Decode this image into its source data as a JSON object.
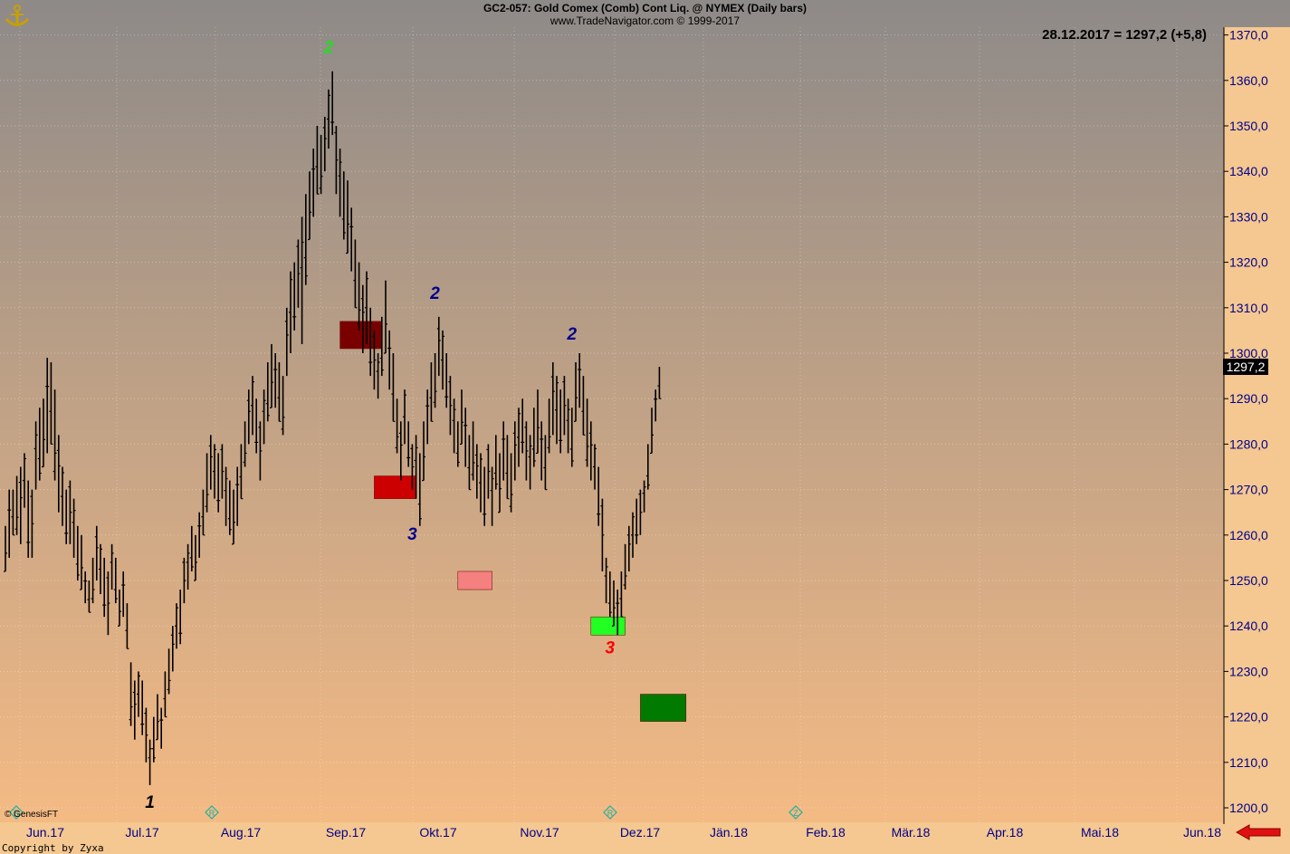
{
  "header": {
    "title": "GC2-057:  Gold Comex (Comb) Cont Liq. @ NYMEX  (Daily bars)",
    "source": "www.TradeNavigator.com © 1999-2017"
  },
  "last_label": "28.12.2017 = 1297,2 (+5,8)",
  "price_tag": "1297,2",
  "copyright_genesis": "© GenesisFT",
  "copyright_zyxa": "Copyright by Zyxa",
  "icons": {
    "logo": "anchor-logo-icon",
    "scroll": "red-left-arrow-icon"
  },
  "colors": {
    "bg_top": "#8e8a88",
    "bg_bottom": "#f8bc84",
    "bars": "#000000",
    "axis_labels": "#00008b"
  },
  "chart_data": {
    "type": "ohlc-bar",
    "ylim": [
      1198,
      1372
    ],
    "y_ticks": [
      "1200,0",
      "1210,0",
      "1220,0",
      "1230,0",
      "1240,0",
      "1250,0",
      "1260,0",
      "1270,0",
      "1280,0",
      "1290,0",
      "1300,0",
      "1310,0",
      "1320,0",
      "1330,0",
      "1340,0",
      "1350,0",
      "1360,0",
      "1370,0"
    ],
    "x_ticks": [
      "Jun.17",
      "Jul.17",
      "Aug.17",
      "Sep.17",
      "Okt.17",
      "Nov.17",
      "Dez.17",
      "Jän.18",
      "Feb.18",
      "Mär.18",
      "Apr.18",
      "Mai.18",
      "Jun.18"
    ],
    "bars": [
      [
        1262,
        1252
      ],
      [
        1270,
        1255
      ],
      [
        1270,
        1260
      ],
      [
        1273,
        1260
      ],
      [
        1275,
        1258
      ],
      [
        1278,
        1266
      ],
      [
        1272,
        1255
      ],
      [
        1270,
        1255
      ],
      [
        1285,
        1270
      ],
      [
        1288,
        1272
      ],
      [
        1290,
        1275
      ],
      [
        1299,
        1278
      ],
      [
        1298,
        1280
      ],
      [
        1292,
        1272
      ],
      [
        1282,
        1265
      ],
      [
        1275,
        1262
      ],
      [
        1270,
        1258
      ],
      [
        1272,
        1258
      ],
      [
        1268,
        1255
      ],
      [
        1262,
        1250
      ],
      [
        1260,
        1248
      ],
      [
        1252,
        1245
      ],
      [
        1250,
        1243
      ],
      [
        1255,
        1245
      ],
      [
        1262,
        1250
      ],
      [
        1258,
        1247
      ],
      [
        1255,
        1242
      ],
      [
        1252,
        1238
      ],
      [
        1258,
        1248
      ],
      [
        1255,
        1245
      ],
      [
        1248,
        1240
      ],
      [
        1252,
        1242
      ],
      [
        1245,
        1235
      ],
      [
        1232,
        1218
      ],
      [
        1228,
        1215
      ],
      [
        1230,
        1220
      ],
      [
        1228,
        1216
      ],
      [
        1222,
        1210
      ],
      [
        1215,
        1205
      ],
      [
        1220,
        1210
      ],
      [
        1225,
        1215
      ],
      [
        1222,
        1213
      ],
      [
        1230,
        1220
      ],
      [
        1235,
        1225
      ],
      [
        1240,
        1230
      ],
      [
        1245,
        1235
      ],
      [
        1248,
        1236
      ],
      [
        1255,
        1245
      ],
      [
        1258,
        1248
      ],
      [
        1262,
        1252
      ],
      [
        1260,
        1250
      ],
      [
        1265,
        1255
      ],
      [
        1270,
        1260
      ],
      [
        1278,
        1265
      ],
      [
        1282,
        1270
      ],
      [
        1280,
        1268
      ],
      [
        1278,
        1265
      ],
      [
        1280,
        1268
      ],
      [
        1275,
        1262
      ],
      [
        1272,
        1260
      ],
      [
        1270,
        1258
      ],
      [
        1275,
        1262
      ],
      [
        1280,
        1268
      ],
      [
        1285,
        1275
      ],
      [
        1292,
        1280
      ],
      [
        1295,
        1282
      ],
      [
        1290,
        1278
      ],
      [
        1285,
        1272
      ],
      [
        1292,
        1280
      ],
      [
        1298,
        1285
      ],
      [
        1302,
        1288
      ],
      [
        1300,
        1288
      ],
      [
        1298,
        1285
      ],
      [
        1295,
        1282
      ],
      [
        1310,
        1295
      ],
      [
        1318,
        1300
      ],
      [
        1320,
        1305
      ],
      [
        1325,
        1310
      ],
      [
        1330,
        1302
      ],
      [
        1335,
        1315
      ],
      [
        1340,
        1325
      ],
      [
        1345,
        1330
      ],
      [
        1350,
        1335
      ],
      [
        1348,
        1335
      ],
      [
        1352,
        1340
      ],
      [
        1358,
        1345
      ],
      [
        1362,
        1348
      ],
      [
        1350,
        1335
      ],
      [
        1345,
        1330
      ],
      [
        1340,
        1325
      ],
      [
        1338,
        1322
      ],
      [
        1332,
        1318
      ],
      [
        1325,
        1310
      ],
      [
        1320,
        1305
      ],
      [
        1315,
        1300
      ],
      [
        1318,
        1302
      ],
      [
        1310,
        1295
      ],
      [
        1305,
        1292
      ],
      [
        1300,
        1290
      ],
      [
        1308,
        1295
      ],
      [
        1316,
        1300
      ],
      [
        1305,
        1292
      ],
      [
        1300,
        1285
      ],
      [
        1290,
        1278
      ],
      [
        1285,
        1272
      ],
      [
        1292,
        1280
      ],
      [
        1285,
        1275
      ],
      [
        1280,
        1270
      ],
      [
        1282,
        1268
      ],
      [
        1278,
        1262
      ],
      [
        1285,
        1272
      ],
      [
        1292,
        1280
      ],
      [
        1298,
        1285
      ],
      [
        1300,
        1288
      ],
      [
        1308,
        1295
      ],
      [
        1305,
        1292
      ],
      [
        1300,
        1288
      ],
      [
        1295,
        1282
      ],
      [
        1290,
        1278
      ],
      [
        1285,
        1275
      ],
      [
        1292,
        1280
      ],
      [
        1288,
        1275
      ],
      [
        1282,
        1270
      ],
      [
        1285,
        1272
      ],
      [
        1280,
        1268
      ],
      [
        1278,
        1265
      ],
      [
        1275,
        1262
      ],
      [
        1280,
        1268
      ],
      [
        1275,
        1262
      ],
      [
        1282,
        1270
      ],
      [
        1278,
        1265
      ],
      [
        1285,
        1272
      ],
      [
        1282,
        1268
      ],
      [
        1278,
        1265
      ],
      [
        1285,
        1272
      ],
      [
        1288,
        1275
      ],
      [
        1290,
        1278
      ],
      [
        1285,
        1272
      ],
      [
        1282,
        1270
      ],
      [
        1288,
        1275
      ],
      [
        1292,
        1278
      ],
      [
        1285,
        1272
      ],
      [
        1282,
        1270
      ],
      [
        1290,
        1278
      ],
      [
        1298,
        1282
      ],
      [
        1295,
        1280
      ],
      [
        1292,
        1278
      ],
      [
        1295,
        1282
      ],
      [
        1290,
        1278
      ],
      [
        1288,
        1275
      ],
      [
        1298,
        1285
      ],
      [
        1300,
        1288
      ],
      [
        1295,
        1282
      ],
      [
        1290,
        1275
      ],
      [
        1285,
        1272
      ],
      [
        1280,
        1270
      ],
      [
        1275,
        1262
      ],
      [
        1268,
        1252
      ],
      [
        1255,
        1245
      ],
      [
        1252,
        1242
      ],
      [
        1250,
        1240
      ],
      [
        1248,
        1238
      ],
      [
        1252,
        1242
      ],
      [
        1258,
        1248
      ],
      [
        1262,
        1252
      ],
      [
        1265,
        1255
      ],
      [
        1268,
        1258
      ],
      [
        1270,
        1260
      ],
      [
        1272,
        1265
      ],
      [
        1280,
        1270
      ],
      [
        1288,
        1278
      ],
      [
        1292,
        1285
      ],
      [
        1297,
        1290
      ]
    ],
    "labels": [
      {
        "text": "2",
        "bar": 85,
        "price": 1366,
        "color": "#22dd22"
      },
      {
        "text": "1",
        "bar": 38,
        "price": 1200,
        "color": "#000000"
      },
      {
        "text": "2",
        "bar": 113,
        "price": 1312,
        "color": "#00008b"
      },
      {
        "text": "3",
        "bar": 107,
        "price": 1259,
        "color": "#00008b"
      },
      {
        "text": "2",
        "bar": 149,
        "price": 1303,
        "color": "#00008b"
      },
      {
        "text": "3",
        "bar": 159,
        "price": 1234,
        "color": "#ff0000"
      }
    ],
    "boxes": [
      {
        "bar_from": 88,
        "bar_to": 99,
        "top": 1307,
        "bottom": 1301,
        "fill": "#7a0000"
      },
      {
        "bar_from": 97,
        "bar_to": 108,
        "top": 1273,
        "bottom": 1268,
        "fill": "#cc0000"
      },
      {
        "bar_from": 119,
        "bar_to": 128,
        "top": 1252,
        "bottom": 1248,
        "fill": "#f48080"
      },
      {
        "bar_from": 154,
        "bar_to": 163,
        "top": 1242,
        "bottom": 1238,
        "fill": "#22ff22"
      },
      {
        "bar_from": 167,
        "bar_to": 179,
        "top": 1225,
        "bottom": 1219,
        "fill": "#007a00"
      }
    ],
    "markers": [
      "R",
      "R",
      "R",
      "Z"
    ]
  }
}
